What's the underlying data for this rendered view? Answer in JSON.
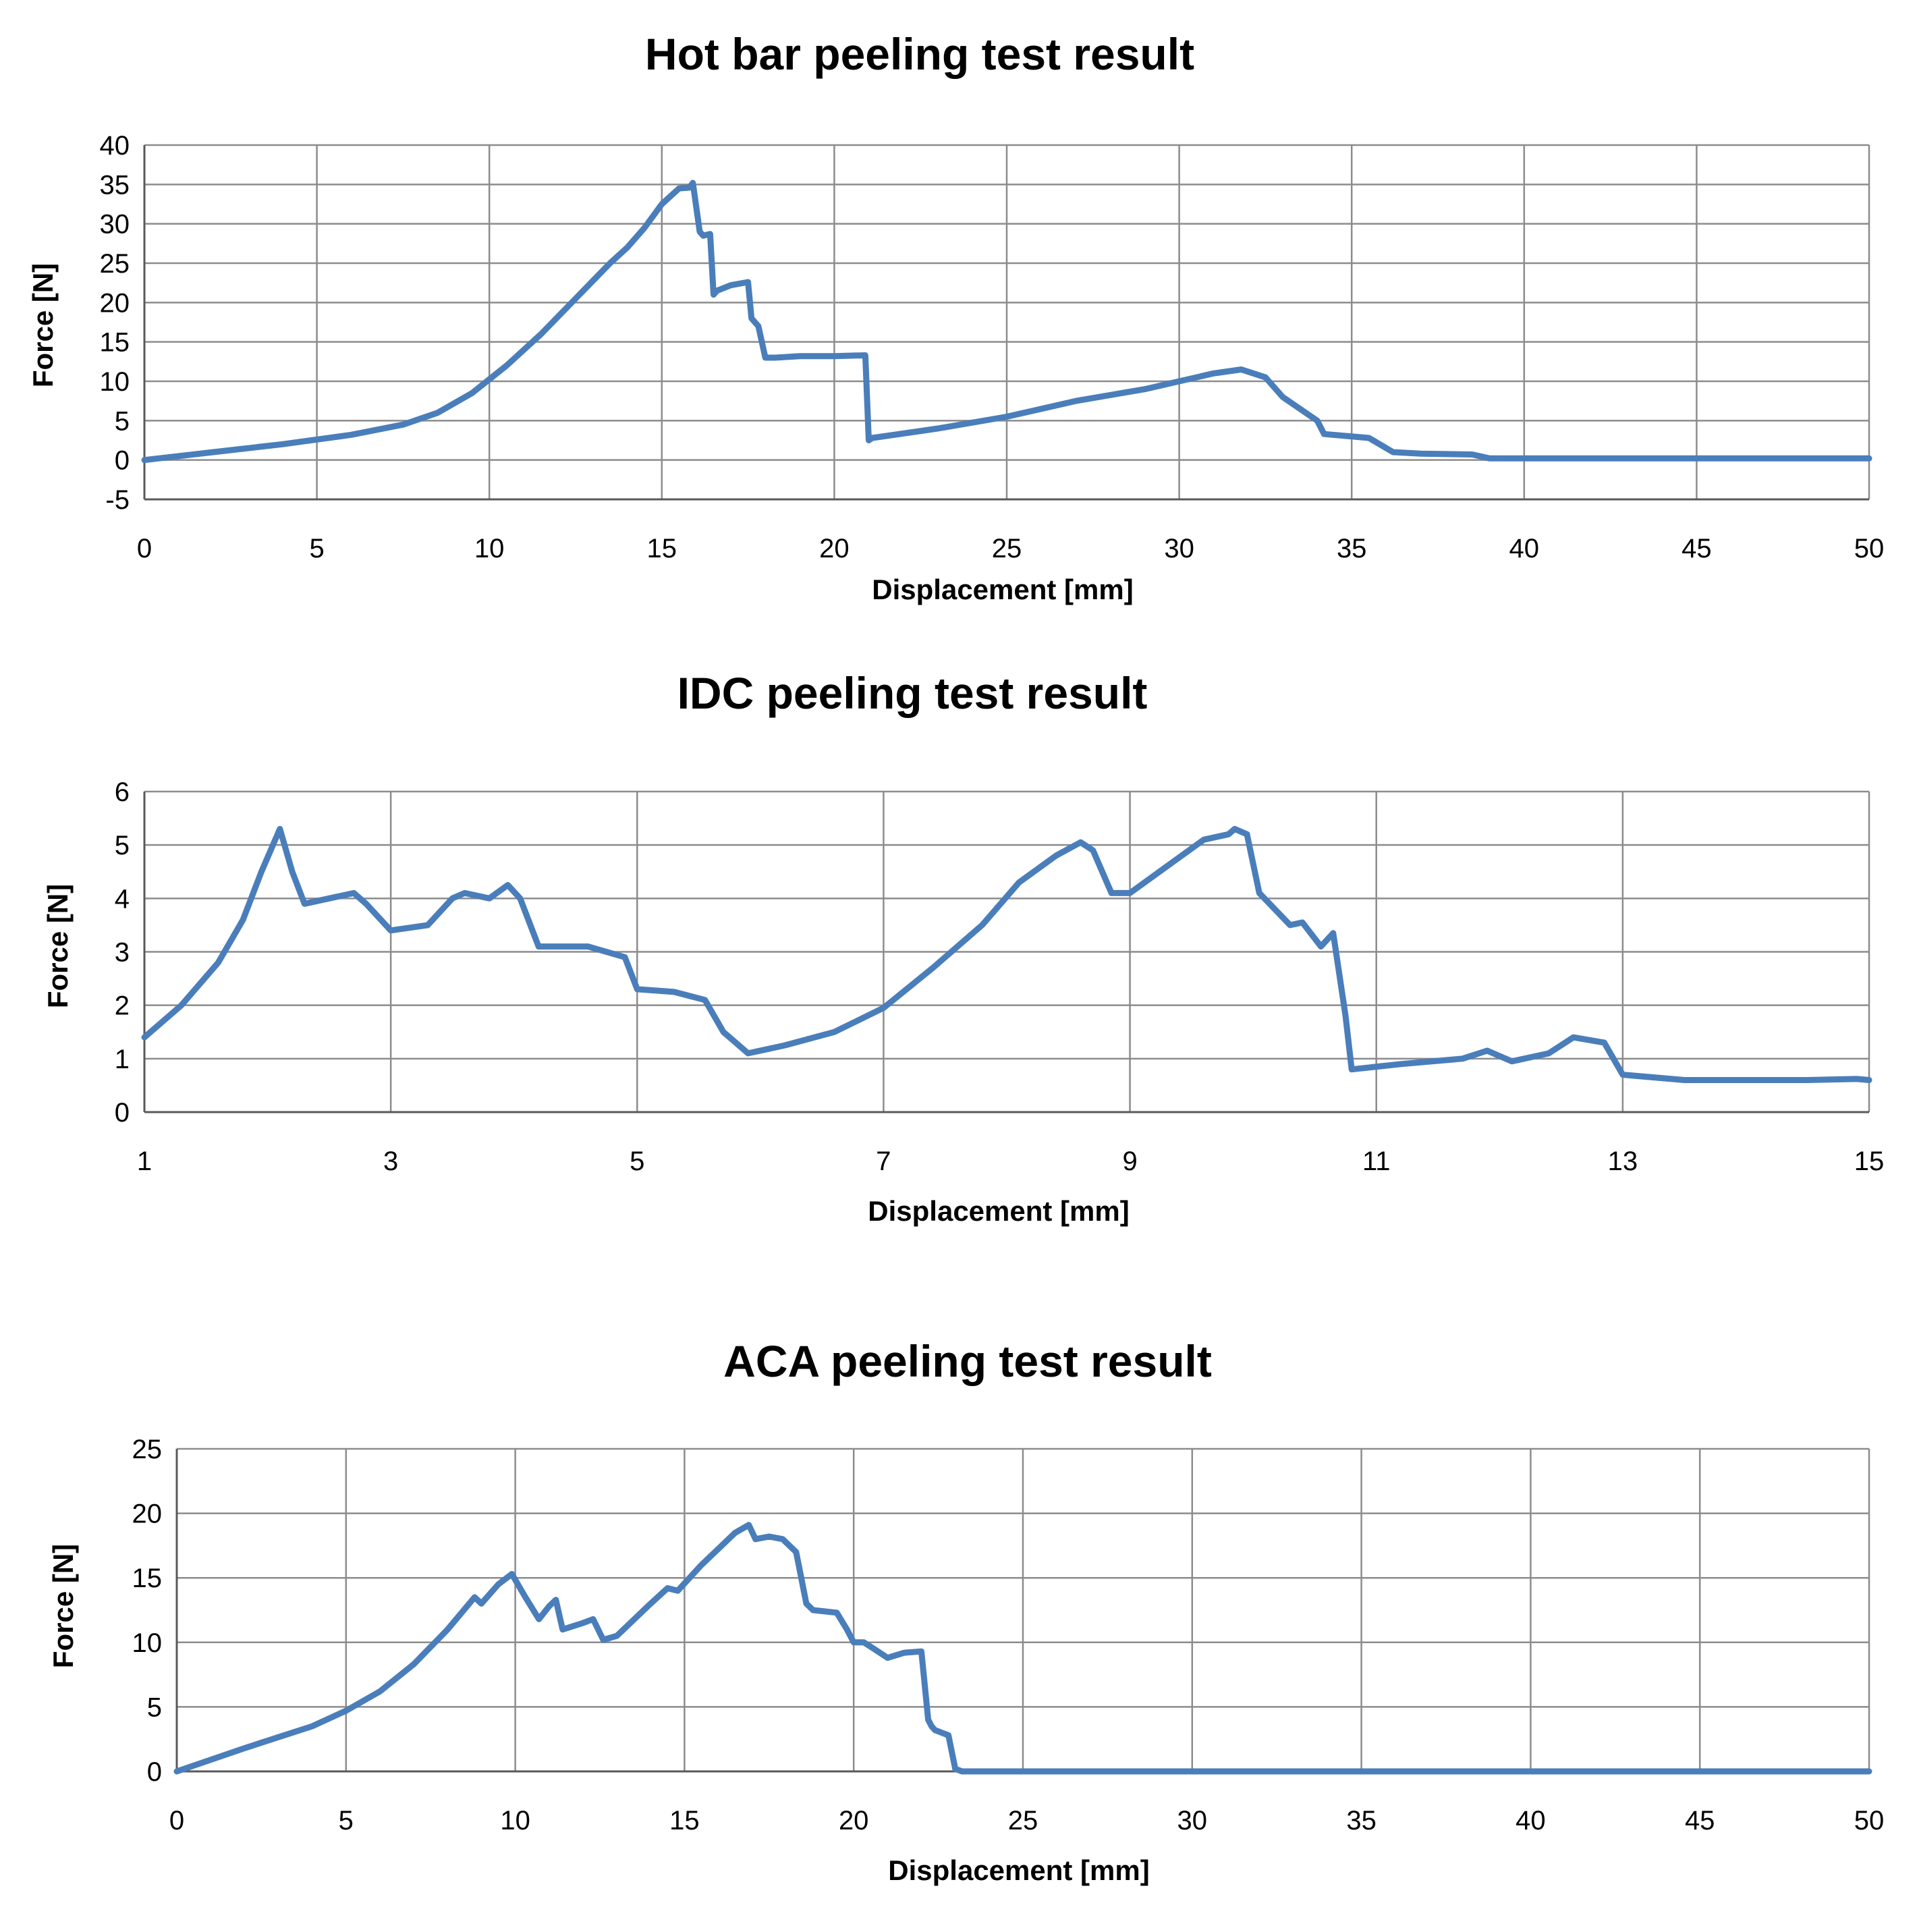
{
  "colors": {
    "series": "#4a7ebb",
    "grid": "#8c8c8c",
    "axis": "#595959",
    "background": "#ffffff"
  },
  "chart_data": [
    {
      "type": "line",
      "title": "Hot bar peeling test result",
      "xlabel": "Displacement  [mm]",
      "ylabel": "Force  [N]",
      "xlim": [
        0,
        50
      ],
      "ylim": [
        -5,
        40
      ],
      "xticks": [
        0,
        5,
        10,
        15,
        20,
        25,
        30,
        35,
        40,
        45,
        50
      ],
      "yticks": [
        -5,
        0,
        5,
        10,
        15,
        20,
        25,
        30,
        35,
        40
      ],
      "grid": true,
      "series": [
        {
          "name": "Force",
          "x": [
            0,
            2,
            4,
            6,
            7.5,
            8.5,
            9.5,
            10.5,
            11.5,
            12.5,
            13.5,
            14,
            14.5,
            15,
            15.5,
            15.8,
            15.9,
            16.1,
            16.2,
            16.4,
            16.5,
            16.6,
            17,
            17.5,
            17.6,
            17.8,
            18,
            18.3,
            19,
            20,
            20.9,
            21,
            21.1,
            23,
            25,
            27,
            29,
            31,
            31.8,
            32.5,
            33,
            33.5,
            34,
            34.2,
            35.5,
            36.2,
            37,
            38.5,
            39,
            50
          ],
          "y": [
            0,
            1,
            2,
            3.2,
            4.5,
            6,
            8.5,
            12,
            16,
            20.5,
            25,
            27,
            29.5,
            32.5,
            34.5,
            34.6,
            35.2,
            29,
            28.5,
            28.7,
            21,
            21.5,
            22.2,
            22.6,
            18,
            17,
            13,
            13,
            13.2,
            13.2,
            13.3,
            2.5,
            2.8,
            4,
            5.5,
            7.5,
            9,
            11,
            11.5,
            10.5,
            8,
            6.5,
            5,
            3.3,
            2.8,
            1,
            0.8,
            0.7,
            0.2,
            0.2
          ]
        }
      ]
    },
    {
      "type": "line",
      "title": "IDC peeling test result",
      "xlabel": "Displacement  [mm]",
      "ylabel": "Force  [N]",
      "xlim": [
        1,
        15
      ],
      "ylim": [
        0,
        6
      ],
      "xticks": [
        1,
        3,
        5,
        7,
        9,
        11,
        13,
        15
      ],
      "yticks": [
        0,
        1,
        2,
        3,
        4,
        5,
        6
      ],
      "grid": true,
      "series": [
        {
          "name": "Force",
          "x": [
            1,
            1.3,
            1.6,
            1.8,
            1.95,
            2.1,
            2.2,
            2.3,
            2.5,
            2.7,
            2.8,
            3,
            3.3,
            3.5,
            3.6,
            3.8,
            3.95,
            4.05,
            4.2,
            4.6,
            4.9,
            5,
            5.3,
            5.55,
            5.7,
            5.9,
            6.2,
            6.6,
            7,
            7.4,
            7.8,
            8.1,
            8.4,
            8.6,
            8.7,
            8.85,
            9,
            9.3,
            9.6,
            9.8,
            9.85,
            9.95,
            10.05,
            10.3,
            10.4,
            10.55,
            10.65,
            10.75,
            10.8,
            11.2,
            11.7,
            11.9,
            12.1,
            12.4,
            12.6,
            12.85,
            13,
            13.5,
            14.5,
            14.9,
            15
          ],
          "y": [
            1.4,
            2.0,
            2.8,
            3.6,
            4.5,
            5.3,
            4.5,
            3.9,
            4.0,
            4.1,
            3.9,
            3.4,
            3.5,
            4.0,
            4.1,
            4.0,
            4.25,
            4.0,
            3.1,
            3.1,
            2.9,
            2.3,
            2.25,
            2.1,
            1.5,
            1.1,
            1.25,
            1.5,
            1.95,
            2.7,
            3.5,
            4.3,
            4.8,
            5.05,
            4.9,
            4.1,
            4.1,
            4.6,
            5.1,
            5.2,
            5.3,
            5.2,
            4.1,
            3.5,
            3.55,
            3.1,
            3.35,
            1.8,
            0.8,
            0.9,
            1.0,
            1.15,
            0.95,
            1.1,
            1.4,
            1.3,
            0.7,
            0.6,
            0.6,
            0.62,
            0.6
          ]
        }
      ]
    },
    {
      "type": "line",
      "title": "ACA peeling test result",
      "xlabel": "Displacement  [mm]",
      "ylabel": "Force  [N]",
      "xlim": [
        0,
        50
      ],
      "ylim": [
        0,
        25
      ],
      "xticks": [
        0,
        5,
        10,
        15,
        20,
        25,
        30,
        35,
        40,
        45,
        50
      ],
      "yticks": [
        0,
        5,
        10,
        15,
        20,
        25
      ],
      "grid": true,
      "series": [
        {
          "name": "Force",
          "x": [
            0,
            2,
            4,
            5,
            6,
            7,
            8,
            8.8,
            9,
            9.5,
            9.9,
            10.3,
            10.7,
            11,
            11.2,
            11.4,
            12,
            12.3,
            12.6,
            13,
            14,
            14.5,
            14.8,
            15.5,
            16.5,
            16.9,
            17.1,
            17.5,
            17.9,
            18.3,
            18.6,
            18.8,
            19.5,
            19.8,
            20,
            20.3,
            20.6,
            21,
            21.5,
            22,
            22.2,
            22.3,
            22.4,
            22.8,
            23,
            23.2,
            50
          ],
          "y": [
            0,
            1.8,
            3.5,
            4.7,
            6.2,
            8.3,
            11,
            13.5,
            13,
            14.5,
            15.3,
            13.5,
            11.8,
            12.8,
            13.3,
            11,
            11.5,
            11.8,
            10.2,
            10.5,
            13,
            14.2,
            14,
            16,
            18.5,
            19.1,
            18,
            18.2,
            18,
            17,
            13,
            12.5,
            12.3,
            11,
            10,
            10,
            9.5,
            8.8,
            9.2,
            9.3,
            4,
            3.5,
            3.2,
            2.8,
            0.2,
            0,
            0
          ]
        }
      ]
    }
  ]
}
